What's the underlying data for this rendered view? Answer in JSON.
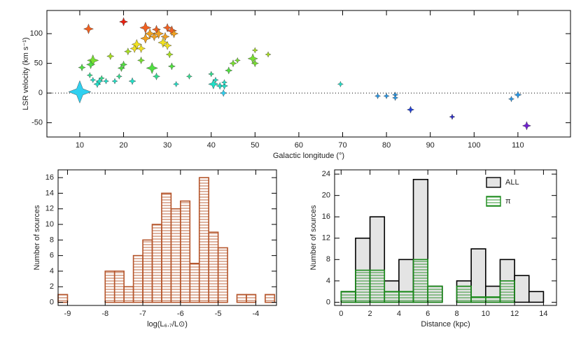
{
  "chart_data": [
    {
      "type": "scatter",
      "xlabel": "Galactic longitude (°)",
      "ylabel": "LSR velocity (km s⁻¹)",
      "xlim": [
        2.5,
        122
      ],
      "ylim": [
        -74,
        139
      ],
      "xticks": [
        10,
        20,
        30,
        40,
        50,
        60,
        70,
        80,
        90,
        100,
        110
      ],
      "yticks": [
        -50,
        0,
        50,
        100
      ],
      "hline": 0,
      "x": [
        10,
        12,
        10.5,
        13,
        12.5,
        12.3,
        13,
        14,
        14.5,
        15,
        16,
        17,
        18,
        19,
        19.5,
        20,
        20,
        21,
        22,
        22.5,
        23,
        24,
        24,
        25,
        25,
        26,
        26.5,
        27,
        27.5,
        27.5,
        28,
        29,
        29.5,
        30,
        30,
        31,
        31.5,
        31,
        30.5,
        32,
        35,
        40,
        40.5,
        41,
        42,
        42.8,
        43,
        43,
        44,
        45,
        46,
        50,
        49.5,
        50,
        53,
        69.5,
        78,
        80,
        82,
        82,
        85.5,
        95,
        108.5,
        110,
        112
      ],
      "y": [
        2,
        108,
        43,
        55,
        48,
        30,
        22,
        15,
        20,
        25,
        20,
        62,
        20,
        28,
        42,
        48,
        120,
        70,
        20,
        75,
        82,
        75,
        55,
        92,
        110,
        100,
        42,
        95,
        107,
        28,
        100,
        85,
        95,
        80,
        110,
        105,
        100,
        45,
        65,
        15,
        28,
        32,
        15,
        22,
        12,
        0,
        12,
        18,
        38,
        50,
        55,
        72,
        58,
        50,
        65,
        15,
        -5,
        -5,
        -3,
        -8,
        -28,
        -40,
        -10,
        -3,
        -55
      ],
      "sizes": [
        16,
        7,
        5,
        8,
        6,
        4,
        4,
        5,
        5,
        4,
        4,
        5,
        4,
        4,
        5,
        5,
        6,
        5,
        5,
        6,
        7,
        6,
        5,
        7,
        8,
        7,
        8,
        6,
        6,
        5,
        7,
        7,
        6,
        6,
        6,
        7,
        6,
        5,
        5,
        4,
        4,
        4,
        7,
        4,
        5,
        5,
        5,
        4,
        5,
        5,
        4,
        4,
        7,
        5,
        4,
        4,
        4,
        4,
        4,
        4,
        5,
        4,
        4,
        5,
        6
      ],
      "colors": [
        "#30d0f0",
        "#f06020",
        "#50e040",
        "#78e030",
        "#50e040",
        "#30e090",
        "#20e0c8",
        "#20e0c8",
        "#20e0c8",
        "#30e090",
        "#20e0c8",
        "#a8e020",
        "#20e0c8",
        "#30e090",
        "#50e040",
        "#50e040",
        "#e82010",
        "#a8e020",
        "#20e0c8",
        "#f0e020",
        "#f0e020",
        "#f0e020",
        "#78e030",
        "#f0a020",
        "#f06020",
        "#f0a020",
        "#50e040",
        "#f0a020",
        "#f06020",
        "#30e090",
        "#f0a020",
        "#f0e020",
        "#f0a020",
        "#f0e020",
        "#f06020",
        "#f06020",
        "#f0a020",
        "#50e040",
        "#a8e020",
        "#20e0c8",
        "#30e090",
        "#30e090",
        "#20e0c8",
        "#20e0c8",
        "#20e0c8",
        "#30d0f0",
        "#20e0c8",
        "#20e0c8",
        "#50e040",
        "#78e030",
        "#78e030",
        "#a8e020",
        "#78e030",
        "#78e030",
        "#a8e020",
        "#20e0c8",
        "#2898e8",
        "#2898e8",
        "#2898e8",
        "#2898e8",
        "#2040d8",
        "#3030c8",
        "#2898e8",
        "#2898e8",
        "#7020d0"
      ]
    },
    {
      "type": "histogram",
      "xlabel": "log(L₆.₇/L⊙)",
      "ylabel": "Number of sources",
      "xlim": [
        -9.25,
        -3.45
      ],
      "ylim": [
        -0.4,
        17
      ],
      "xticks": [
        -9,
        -8,
        -7,
        -6,
        -5,
        -4
      ],
      "yticks": [
        0,
        2,
        4,
        6,
        8,
        10,
        12,
        14,
        16
      ],
      "bins": [
        -9.25,
        -9,
        -8.75,
        -8.5,
        -8.25,
        -8,
        -7.75,
        -7.5,
        -7.25,
        -7,
        -6.75,
        -6.5,
        -6.25,
        -6,
        -5.75,
        -5.5,
        -5.25,
        -5,
        -4.75,
        -4.5,
        -4.25,
        -4,
        -3.75,
        -3.5
      ],
      "counts": [
        1,
        0,
        0,
        0,
        0,
        4,
        4,
        2,
        6,
        8,
        10,
        14,
        12,
        13,
        5,
        16,
        9,
        7,
        0,
        1,
        1,
        0,
        1
      ],
      "color": "#b5552b",
      "hatch": true
    },
    {
      "type": "histogram",
      "xlabel": "Distance (kpc)",
      "ylabel": "Number of sources",
      "xlim": [
        -0.45,
        14.9
      ],
      "ylim": [
        -0.6,
        24.8
      ],
      "xticks": [
        0,
        2,
        4,
        6,
        8,
        10,
        12,
        14
      ],
      "yticks": [
        0,
        4,
        8,
        12,
        16,
        20,
        24
      ],
      "bins": [
        0,
        1,
        2,
        3,
        4,
        5,
        6,
        7,
        8,
        9,
        10,
        11,
        12,
        13,
        14
      ],
      "legend": "top-right",
      "series": [
        {
          "name": "ALL",
          "color": "#000000",
          "fill": "#e4e4e4",
          "values": [
            2,
            12,
            16,
            4,
            8,
            23,
            3,
            0,
            4,
            10,
            3,
            8,
            5,
            2
          ]
        },
        {
          "name": "π",
          "color": "#1a8a1a",
          "hatch": true,
          "values": [
            2,
            6,
            6,
            2,
            2,
            8,
            3,
            0,
            3,
            1,
            1,
            4,
            0,
            0
          ]
        }
      ]
    }
  ]
}
